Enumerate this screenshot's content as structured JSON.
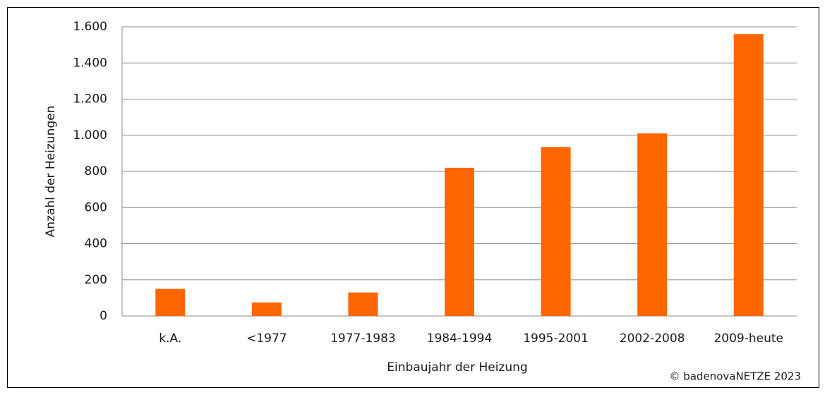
{
  "chart_data": {
    "type": "bar",
    "x_label": "Einbaujahr der Heizung",
    "y_label": "Anzahl der Heizungen",
    "source": "© badenovaNETZE 2023",
    "categories": [
      "k.A.",
      "<1977",
      "1977-1983",
      "1984-1994",
      "1995-2001",
      "2002-2008",
      "2009-heute"
    ],
    "values": [
      150,
      75,
      130,
      820,
      935,
      1010,
      1560
    ],
    "color": "#ff6600",
    "ylim": [
      0,
      1600
    ],
    "yticks": [
      0,
      200,
      400,
      600,
      800,
      {
        "value": 1000,
        "label": "1.000"
      },
      {
        "value": 1200,
        "label": "1.200"
      },
      {
        "value": 1400,
        "label": "1.400"
      },
      {
        "value": 1600,
        "label": "1.600"
      }
    ],
    "grid": true
  }
}
